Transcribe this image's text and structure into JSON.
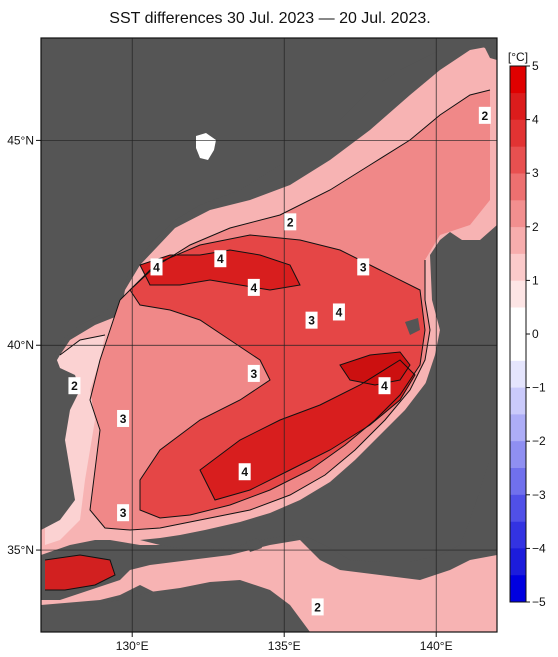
{
  "title": "SST differences 30 Jul. 2023 — 20 Jul. 2023.",
  "map": {
    "lon_range": [
      127,
      142
    ],
    "lat_range": [
      33,
      47.5
    ],
    "lon_ticks": [
      {
        "value": 130,
        "label": "130°E"
      },
      {
        "value": 135,
        "label": "135°E"
      },
      {
        "value": 140,
        "label": "140°E"
      }
    ],
    "lat_ticks": [
      {
        "value": 45,
        "label": "45°N"
      },
      {
        "value": 40,
        "label": "40°N"
      },
      {
        "value": 35,
        "label": "35°N"
      }
    ],
    "land_color": "#555555",
    "grid_color": "#222222"
  },
  "contour_labels": [
    {
      "text": "2",
      "lon": 141.6,
      "lat": 45.6
    },
    {
      "text": "2",
      "lon": 135.2,
      "lat": 43.0
    },
    {
      "text": "4",
      "lon": 130.8,
      "lat": 41.9
    },
    {
      "text": "4",
      "lon": 132.9,
      "lat": 42.1
    },
    {
      "text": "3",
      "lon": 137.6,
      "lat": 41.9
    },
    {
      "text": "4",
      "lon": 134.0,
      "lat": 41.4
    },
    {
      "text": "3",
      "lon": 135.9,
      "lat": 40.6
    },
    {
      "text": "4",
      "lon": 136.8,
      "lat": 40.8
    },
    {
      "text": "3",
      "lon": 134.0,
      "lat": 39.3
    },
    {
      "text": "4",
      "lon": 138.3,
      "lat": 39.0
    },
    {
      "text": "2",
      "lon": 128.1,
      "lat": 39.0
    },
    {
      "text": "3",
      "lon": 129.7,
      "lat": 38.2
    },
    {
      "text": "4",
      "lon": 133.7,
      "lat": 36.9
    },
    {
      "text": "3",
      "lon": 129.7,
      "lat": 35.9
    },
    {
      "text": "2",
      "lon": 136.1,
      "lat": 33.6
    }
  ],
  "colorbar": {
    "unit": "[°C]",
    "min": -5,
    "max": 5,
    "ticks": [
      {
        "value": 5,
        "label": "5"
      },
      {
        "value": 4,
        "label": "4"
      },
      {
        "value": 3,
        "label": "3"
      },
      {
        "value": 2,
        "label": "2"
      },
      {
        "value": 1,
        "label": "1"
      },
      {
        "value": 0,
        "label": "0"
      },
      {
        "value": -1,
        "label": "−1"
      },
      {
        "value": -2,
        "label": "−2"
      },
      {
        "value": -3,
        "label": "−3"
      },
      {
        "value": -4,
        "label": "−4"
      },
      {
        "value": -5,
        "label": "−5"
      }
    ],
    "warm_colors": [
      "#ffffff",
      "#fde5e5",
      "#fbcaca",
      "#f7adad",
      "#f28f8f",
      "#ed7070",
      "#e85050",
      "#e23333",
      "#dc1c1c",
      "#e00000"
    ],
    "cool_colors": [
      "#ffffff",
      "#e5e5fd",
      "#cacafb",
      "#adadf7",
      "#8f8ff2",
      "#7070ed",
      "#5050e8",
      "#3333e2",
      "#1c1cdc",
      "#0000e0"
    ]
  }
}
